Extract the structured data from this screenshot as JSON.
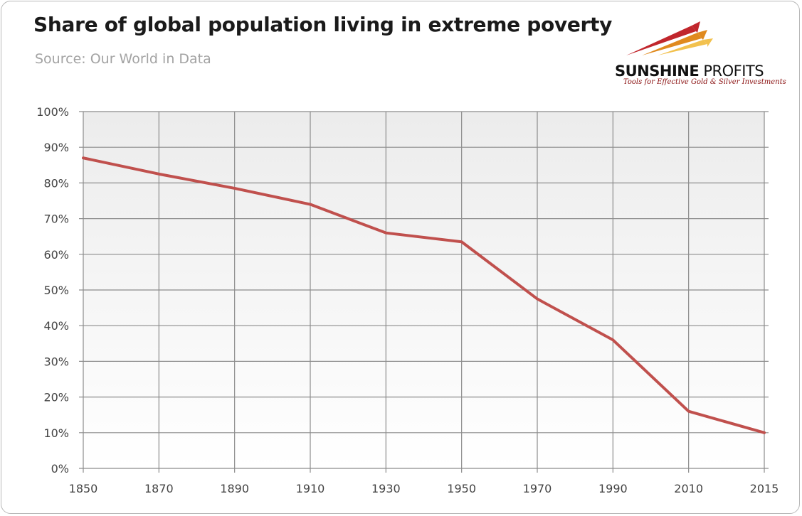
{
  "header": {
    "title": "Share of global population living in extreme poverty",
    "subtitle": "Source: Our World in Data"
  },
  "logo": {
    "name_bold": "SUNSHINE",
    "name_rest": " PROFITS",
    "tagline": "Tools for Effective Gold & Silver Investments",
    "colors": [
      "#c1262c",
      "#e08a1e",
      "#f2c14e"
    ]
  },
  "chart_data": {
    "type": "line",
    "title": "Share of global population living in extreme poverty",
    "subtitle": "Source: Our World in Data",
    "xlabel": "",
    "ylabel": "",
    "x_categories": [
      "1850",
      "1870",
      "1890",
      "1910",
      "1930",
      "1950",
      "1970",
      "1990",
      "2010",
      "2015"
    ],
    "y_ticks": [
      "0%",
      "10%",
      "20%",
      "30%",
      "40%",
      "50%",
      "60%",
      "70%",
      "80%",
      "90%",
      "100%"
    ],
    "ylim": [
      0,
      100
    ],
    "grid": true,
    "series": [
      {
        "color": "#c0504d",
        "points": [
          {
            "x": "1850",
            "y": 87
          },
          {
            "x": "1870",
            "y": 82.5
          },
          {
            "x": "1890",
            "y": 78.5
          },
          {
            "x": "1910",
            "y": 74
          },
          {
            "x": "1930",
            "y": 66
          },
          {
            "x": "1950",
            "y": 63.5
          },
          {
            "x": "1970",
            "y": 47.5
          },
          {
            "x": "1990",
            "y": 36
          },
          {
            "x": "2010",
            "y": 16
          },
          {
            "x": "2015",
            "y": 10
          }
        ]
      }
    ]
  }
}
